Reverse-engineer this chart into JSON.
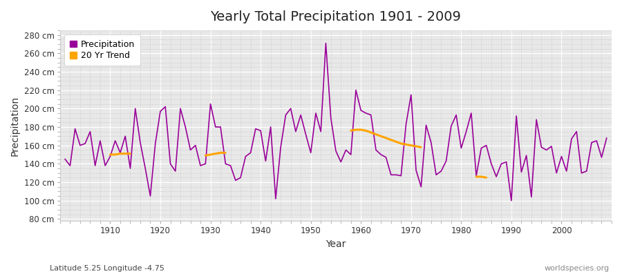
{
  "title": "Yearly Total Precipitation 1901 - 2009",
  "xlabel": "Year",
  "ylabel": "Precipitation",
  "subtitle": "Latitude 5.25 Longitude -4.75",
  "watermark": "worldspecies.org",
  "precip_color": "#990099",
  "trend_color": "#FFA500",
  "fig_bg_color": "#ffffff",
  "plot_bg_color": "#e8e8e8",
  "ylim": [
    78,
    285
  ],
  "yticks": [
    80,
    100,
    120,
    140,
    160,
    180,
    200,
    220,
    240,
    260,
    280
  ],
  "xticks": [
    1910,
    1920,
    1930,
    1940,
    1950,
    1960,
    1970,
    1980,
    1990,
    2000
  ],
  "xlim": [
    1900,
    2010
  ],
  "years": [
    1901,
    1902,
    1903,
    1904,
    1905,
    1906,
    1907,
    1908,
    1909,
    1910,
    1911,
    1912,
    1913,
    1914,
    1915,
    1916,
    1917,
    1918,
    1919,
    1920,
    1921,
    1922,
    1923,
    1924,
    1925,
    1926,
    1927,
    1928,
    1929,
    1930,
    1931,
    1932,
    1933,
    1934,
    1935,
    1936,
    1937,
    1938,
    1939,
    1940,
    1941,
    1942,
    1943,
    1944,
    1945,
    1946,
    1947,
    1948,
    1949,
    1950,
    1951,
    1952,
    1953,
    1954,
    1955,
    1956,
    1957,
    1958,
    1959,
    1960,
    1961,
    1962,
    1963,
    1964,
    1965,
    1966,
    1967,
    1968,
    1969,
    1970,
    1971,
    1972,
    1973,
    1974,
    1975,
    1976,
    1977,
    1978,
    1979,
    1980,
    1981,
    1982,
    1983,
    1984,
    1985,
    1986,
    1987,
    1988,
    1989,
    1990,
    1991,
    1992,
    1993,
    1994,
    1995,
    1996,
    1997,
    1998,
    1999,
    2000,
    2001,
    2002,
    2003,
    2004,
    2005,
    2006,
    2007,
    2008,
    2009
  ],
  "precip": [
    145,
    138,
    178,
    160,
    162,
    175,
    138,
    165,
    138,
    148,
    165,
    152,
    170,
    135,
    200,
    163,
    135,
    105,
    162,
    197,
    202,
    140,
    132,
    200,
    180,
    155,
    160,
    138,
    140,
    205,
    180,
    180,
    140,
    138,
    122,
    125,
    148,
    152,
    178,
    176,
    143,
    180,
    102,
    158,
    193,
    200,
    175,
    193,
    172,
    152,
    195,
    175,
    271,
    190,
    154,
    142,
    155,
    150,
    220,
    198,
    195,
    193,
    155,
    150,
    147,
    128,
    128,
    127,
    183,
    215,
    133,
    115,
    182,
    163,
    128,
    132,
    143,
    181,
    193,
    157,
    175,
    195,
    127,
    157,
    160,
    140,
    126,
    140,
    142,
    100,
    192,
    131,
    149,
    104,
    188,
    158,
    155,
    159,
    130,
    148,
    132,
    167,
    175,
    130,
    132,
    163,
    165,
    147,
    168
  ],
  "trend_seg1_years": [
    1910,
    1911,
    1912,
    1913,
    1914
  ],
  "trend_seg1_vals": [
    150,
    150,
    151,
    151,
    151
  ],
  "trend_seg2_years": [
    1929,
    1930,
    1931,
    1932,
    1933
  ],
  "trend_seg2_vals": [
    149,
    150,
    151,
    152,
    152
  ],
  "trend_seg3_years": [
    1958,
    1959,
    1960,
    1961,
    1962,
    1963,
    1964,
    1965,
    1966,
    1967,
    1968,
    1969,
    1970,
    1971,
    1972
  ],
  "trend_seg3_vals": [
    176,
    177,
    177,
    176,
    174,
    172,
    170,
    168,
    166,
    164,
    162,
    161,
    160,
    159,
    158
  ],
  "trend_seg4_years": [
    1983,
    1984,
    1985
  ],
  "trend_seg4_vals": [
    126,
    126,
    125
  ]
}
